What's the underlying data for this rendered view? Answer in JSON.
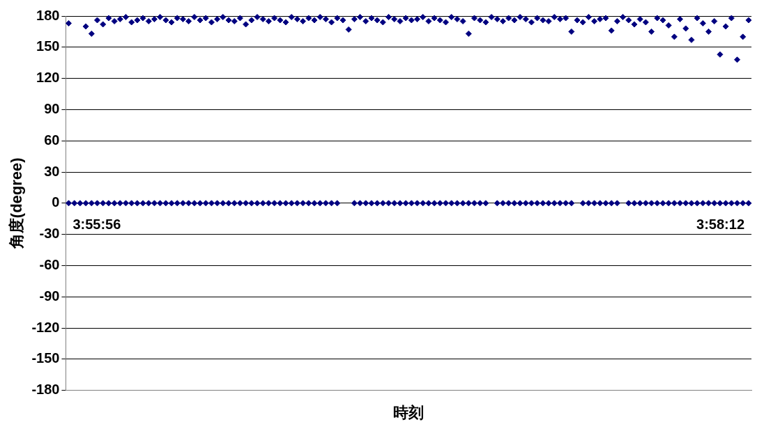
{
  "chart_data": {
    "type": "scatter",
    "xlabel": "時刻",
    "ylabel": "角度(degree)",
    "annotations": [
      "3:55:56",
      "3:58:12"
    ],
    "categories": [
      null,
      null,
      null,
      null,
      null,
      null,
      null,
      null,
      null,
      null,
      null,
      null,
      null,
      null,
      null,
      null,
      null,
      null,
      null,
      null,
      null,
      null,
      null,
      null,
      null,
      null,
      null,
      null,
      null,
      null,
      null,
      null,
      null,
      null,
      null,
      null,
      null,
      null,
      null,
      null,
      null,
      null,
      null,
      null,
      null,
      null,
      null,
      null,
      null,
      null,
      null,
      null,
      null,
      null,
      null,
      null,
      null,
      null,
      null,
      null,
      null,
      null,
      null,
      null,
      null,
      null,
      null,
      null,
      null,
      null,
      null,
      null,
      null,
      null,
      null,
      null,
      null,
      null,
      null,
      null,
      null,
      null,
      null,
      null,
      null,
      null,
      null,
      null,
      null,
      null,
      null,
      null,
      null,
      null,
      null,
      null,
      null,
      null,
      null,
      null,
      null,
      null,
      null,
      null,
      null,
      null,
      null,
      null,
      null,
      null,
      null,
      null,
      null,
      null,
      null,
      null,
      null,
      null,
      null,
      null
    ],
    "series": [
      {
        "color": "#000080",
        "values": [
          173,
          null,
          null,
          170,
          163,
          176,
          172,
          178,
          175,
          177,
          179,
          174,
          176,
          178,
          175,
          177,
          179,
          176,
          174,
          178,
          177,
          175,
          179,
          176,
          178,
          174,
          177,
          179,
          176,
          175,
          178,
          172,
          176,
          179,
          177,
          175,
          178,
          176,
          174,
          179,
          177,
          175,
          178,
          176,
          179,
          177,
          174,
          178,
          176,
          167,
          177,
          179,
          175,
          178,
          176,
          174,
          179,
          177,
          175,
          178,
          176,
          177,
          179,
          175,
          178,
          176,
          174,
          179,
          177,
          175,
          163,
          178,
          176,
          174,
          179,
          177,
          175,
          178,
          176,
          179,
          177,
          174,
          178,
          176,
          175,
          179,
          177,
          178,
          165,
          176,
          174,
          179,
          175,
          177,
          178,
          166,
          175,
          179,
          176,
          172,
          177,
          174,
          165,
          178,
          176,
          171,
          160,
          177,
          168,
          157,
          178,
          173,
          165,
          175,
          143,
          170,
          178,
          138,
          160,
          176
        ]
      },
      {
        "color": "#000080",
        "values": [
          0,
          0,
          0,
          0,
          0,
          0,
          0,
          0,
          0,
          0,
          0,
          0,
          0,
          0,
          0,
          0,
          0,
          0,
          0,
          0,
          0,
          0,
          0,
          0,
          0,
          0,
          0,
          0,
          0,
          0,
          0,
          0,
          0,
          0,
          0,
          0,
          0,
          0,
          0,
          0,
          0,
          0,
          0,
          0,
          0,
          0,
          0,
          0,
          null,
          null,
          0,
          0,
          0,
          0,
          0,
          0,
          0,
          0,
          0,
          0,
          0,
          0,
          0,
          0,
          0,
          0,
          0,
          0,
          0,
          0,
          0,
          0,
          0,
          0,
          null,
          0,
          0,
          0,
          0,
          0,
          0,
          0,
          0,
          0,
          0,
          0,
          0,
          0,
          0,
          null,
          0,
          0,
          0,
          0,
          0,
          0,
          0,
          null,
          0,
          0,
          0,
          0,
          0,
          0,
          0,
          0,
          0,
          0,
          0,
          0,
          0,
          0,
          0,
          0,
          0,
          0,
          0,
          0,
          0,
          0
        ]
      }
    ],
    "ylim": [
      -180,
      180
    ],
    "yticks": [
      -180,
      -150,
      -120,
      -90,
      -60,
      -30,
      0,
      30,
      60,
      90,
      120,
      150,
      180
    ],
    "grid": "y",
    "marker": "diamond",
    "tick_labels": "y"
  }
}
